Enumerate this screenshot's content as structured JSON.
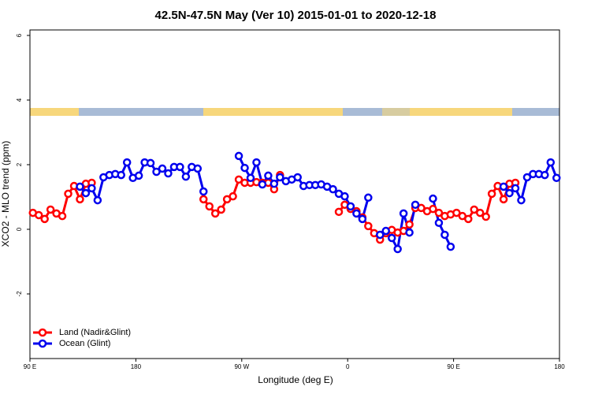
{
  "chart_data": {
    "type": "line",
    "title": "42.5N-47.5N May (Ver 10)   2015-01-01 to 2020-12-18",
    "x_label": "Longitude (deg E)",
    "y_label": "XCO2 - MLO trend (ppm)",
    "xlim": [
      90,
      540
    ],
    "xticks": [
      {
        "value": 90,
        "label": "90 E"
      },
      180,
      {
        "value": 270,
        "label": "90 W"
      },
      {
        "value": 360,
        "label": "0"
      },
      {
        "value": 450,
        "label": "90 E"
      },
      {
        "value": 540,
        "label": "180"
      }
    ],
    "ylim": [
      -4,
      6.17
    ],
    "yticks": [
      -2,
      0,
      2,
      4,
      6
    ],
    "legend": "bottom-left",
    "x": [
      92.5,
      97.5,
      102.5,
      107.5,
      112.5,
      117.5,
      122.5,
      127.5,
      132.5,
      137.5,
      142.5,
      147.5,
      152.5,
      157.5,
      162.5,
      167.5,
      172.5,
      177.5,
      182.5,
      187.5,
      192.5,
      197.5,
      202.5,
      207.5,
      212.5,
      217.5,
      222.5,
      227.5,
      232.5,
      237.5,
      242.5,
      247.5,
      252.5,
      257.5,
      262.5,
      267.5,
      272.5,
      277.5,
      282.5,
      287.5,
      292.5,
      297.5,
      302.5,
      307.5,
      312.5,
      317.5,
      322.5,
      327.5,
      332.5,
      337.5,
      342.5,
      347.5,
      352.5,
      357.5,
      362.5,
      367.5,
      372.5,
      377.5,
      382.5,
      387.5,
      392.5,
      397.5,
      402.5,
      407.5,
      412.5,
      417.5,
      422.5,
      427.5,
      432.5,
      437.5,
      442.5,
      447.5,
      452.5,
      457.5,
      462.5,
      467.5,
      472.5,
      477.5,
      482.5,
      487.5,
      492.5,
      497.5,
      502.5,
      507.5,
      512.5,
      517.5,
      522.5,
      527.5,
      532.5,
      537.5
    ],
    "series": [
      {
        "name": "Land (Nadir&Glint)",
        "color": "#ff0000",
        "values": [
          0.51,
          0.44,
          0.32,
          0.61,
          0.49,
          0.41,
          1.1,
          1.34,
          0.93,
          1.41,
          1.44,
          null,
          null,
          null,
          null,
          null,
          null,
          null,
          null,
          null,
          null,
          null,
          null,
          null,
          null,
          null,
          null,
          null,
          null,
          0.93,
          0.71,
          0.49,
          0.61,
          0.93,
          1.02,
          1.54,
          1.44,
          1.44,
          1.46,
          1.44,
          1.44,
          1.24,
          1.68,
          null,
          null,
          null,
          null,
          null,
          null,
          null,
          null,
          null,
          0.54,
          0.76,
          0.63,
          0.56,
          0.37,
          0.1,
          -0.12,
          -0.32,
          -0.12,
          -0.02,
          -0.1,
          -0.05,
          0.15,
          0.66,
          0.66,
          0.56,
          0.63,
          0.51,
          0.41,
          0.46,
          0.51,
          0.41,
          0.32,
          0.61,
          0.51,
          0.39,
          1.1,
          1.34,
          0.93,
          1.41,
          1.44,
          null,
          null,
          null,
          null,
          null,
          null,
          null
        ]
      },
      {
        "name": "Ocean (Glint)",
        "color": "#0000ee",
        "values": [
          null,
          null,
          null,
          null,
          null,
          null,
          null,
          null,
          1.32,
          1.12,
          1.27,
          0.9,
          1.61,
          1.68,
          1.71,
          1.68,
          2.07,
          1.59,
          1.66,
          2.07,
          2.05,
          1.78,
          1.88,
          1.73,
          1.93,
          1.93,
          1.63,
          1.93,
          1.88,
          1.17,
          null,
          null,
          null,
          null,
          null,
          2.27,
          1.9,
          1.59,
          2.07,
          1.39,
          1.66,
          1.41,
          1.61,
          1.49,
          1.54,
          1.61,
          1.34,
          1.37,
          1.37,
          1.39,
          1.32,
          1.24,
          1.1,
          1.02,
          0.71,
          0.49,
          0.32,
          0.98,
          null,
          -0.17,
          -0.05,
          -0.27,
          -0.61,
          0.49,
          -0.1,
          0.76,
          null,
          null,
          0.95,
          0.2,
          -0.17,
          -0.54,
          null,
          null,
          null,
          null,
          null,
          null,
          null,
          null,
          1.32,
          1.12,
          1.27,
          0.9,
          1.61,
          1.71,
          1.71,
          1.68,
          2.07,
          1.59
        ]
      }
    ]
  }
}
